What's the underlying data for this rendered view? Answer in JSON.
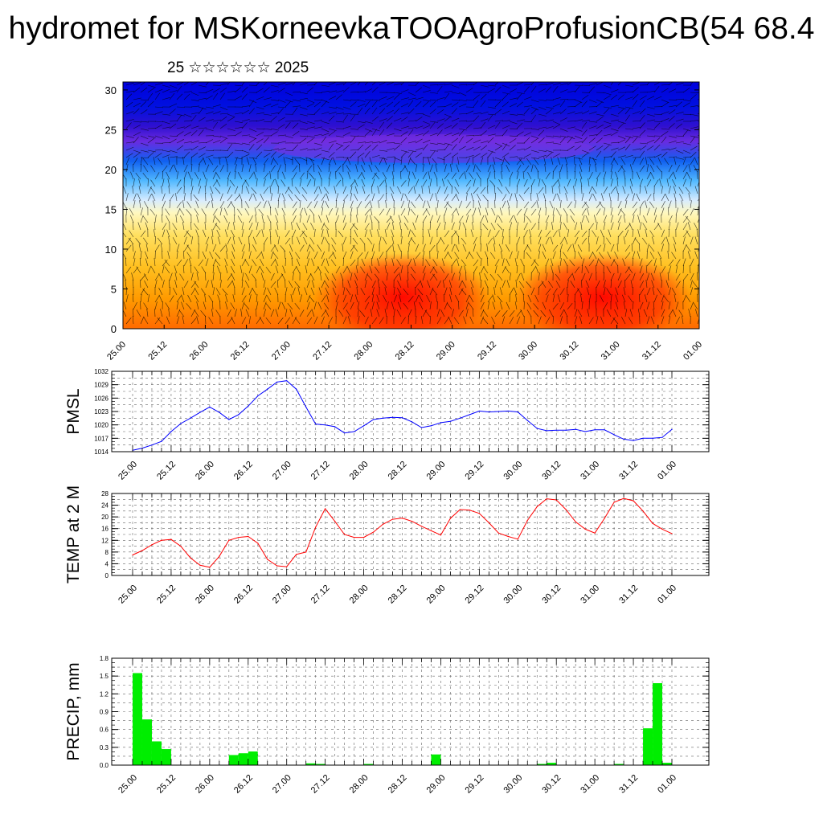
{
  "header": {
    "title": "hydromet for MSKorneevkaTOOAgroProfusionCB(54 68.4",
    "subtitle": "25 ☆☆☆☆☆☆ 2025"
  },
  "chart_data": [
    {
      "type": "heatmap",
      "title": "",
      "xlabel": "",
      "ylabel": "",
      "x_tick_labels": [
        "25.00",
        "25.12",
        "26.00",
        "26.12",
        "27.00",
        "27.12",
        "28.00",
        "28.12",
        "29.00",
        "29.12",
        "30.00",
        "30.12",
        "31.00",
        "31.12",
        "01.00"
      ],
      "y_ticks": [
        0,
        5,
        10,
        15,
        20,
        25,
        30
      ],
      "ylim": [
        0,
        31
      ],
      "overlay": "wind barbs",
      "colors": {
        "low": "#ff0000",
        "mid_low": "#ffa500",
        "mid": "#fff8b0",
        "mid_high": "#40b0ff",
        "high_purple": "#8a2be2",
        "top": "#0000dd"
      }
    },
    {
      "type": "line",
      "ylabel": "PMSL",
      "ylim": [
        1014,
        1032
      ],
      "y_ticks": [
        1014,
        1017,
        1020,
        1023,
        1026,
        1029,
        1032
      ],
      "x_tick_labels": [
        "25.00",
        "25.12",
        "26.00",
        "26.12",
        "27.00",
        "27.12",
        "28.00",
        "28.12",
        "29.00",
        "29.12",
        "30.00",
        "30.12",
        "31.00",
        "31.12",
        "01.00"
      ],
      "x_hours": [
        0,
        3,
        6,
        9,
        12,
        15,
        18,
        21,
        24,
        27,
        30,
        33,
        36,
        39,
        42,
        45,
        48,
        51,
        54,
        57,
        60,
        63,
        66,
        69,
        72,
        75,
        78,
        81,
        84,
        87,
        90,
        93,
        96,
        99,
        102,
        105,
        108,
        111,
        114,
        117,
        120,
        123,
        126,
        129,
        132,
        135,
        138,
        141,
        144,
        147,
        150,
        153,
        156,
        159,
        162,
        165,
        168
      ],
      "values": [
        1014.3,
        1014.8,
        1015.5,
        1016.3,
        1018.5,
        1020.3,
        1021.5,
        1022.8,
        1024.0,
        1022.8,
        1021.2,
        1022.3,
        1024.2,
        1026.5,
        1028.0,
        1029.6,
        1029.9,
        1028.0,
        1024.0,
        1020.2,
        1020.0,
        1019.6,
        1018.2,
        1018.5,
        1019.8,
        1021.2,
        1021.5,
        1021.7,
        1021.6,
        1020.7,
        1019.4,
        1019.8,
        1020.5,
        1020.8,
        1021.5,
        1022.3,
        1023.1,
        1022.9,
        1023.0,
        1023.1,
        1022.9,
        1021.0,
        1019.2,
        1018.7,
        1018.8,
        1018.8,
        1019.0,
        1018.5,
        1018.9,
        1018.9,
        1017.8,
        1016.8,
        1016.5,
        1017.0,
        1017.0,
        1017.2,
        1019.0
      ],
      "color": "#0000ff",
      "grid": true
    },
    {
      "type": "line",
      "ylabel": "TEMP at 2 M",
      "ylim": [
        0,
        28
      ],
      "y_ticks": [
        0,
        4,
        8,
        12,
        16,
        20,
        24,
        28
      ],
      "x_tick_labels": [
        "25.00",
        "25.12",
        "26.00",
        "26.12",
        "27.00",
        "27.12",
        "28.00",
        "28.12",
        "29.00",
        "29.12",
        "30.00",
        "30.12",
        "31.00",
        "31.12",
        "01.00"
      ],
      "x_hours": [
        0,
        3,
        6,
        9,
        12,
        15,
        18,
        21,
        24,
        27,
        30,
        33,
        36,
        39,
        42,
        45,
        48,
        51,
        54,
        57,
        60,
        63,
        66,
        69,
        72,
        75,
        78,
        81,
        84,
        87,
        90,
        93,
        96,
        99,
        102,
        105,
        108,
        111,
        114,
        117,
        120,
        123,
        126,
        129,
        132,
        135,
        138,
        141,
        144,
        147,
        150,
        153,
        156,
        159,
        162,
        165,
        168
      ],
      "values": [
        7.0,
        8.5,
        10.5,
        12.0,
        12.3,
        10.0,
        6.0,
        3.5,
        2.8,
        6.5,
        12.0,
        13.0,
        13.3,
        11.0,
        5.5,
        3.3,
        3.0,
        7.2,
        8.0,
        16.5,
        22.8,
        18.5,
        14.0,
        13.0,
        13.0,
        14.8,
        17.5,
        19.2,
        19.6,
        18.5,
        16.8,
        15.3,
        13.8,
        19.5,
        22.5,
        22.3,
        21.2,
        18.0,
        14.5,
        13.3,
        12.4,
        18.8,
        23.5,
        26.2,
        25.8,
        22.5,
        18.3,
        15.8,
        14.5,
        19.5,
        25.0,
        26.3,
        25.5,
        22.0,
        17.8,
        15.8,
        14.3
      ],
      "color": "#ff0000",
      "grid": true
    },
    {
      "type": "bar",
      "ylabel": "PRECIP, mm",
      "ylim": [
        0,
        1.8
      ],
      "y_ticks": [
        "0.0",
        "0.3",
        "0.6",
        "0.9",
        "1.2",
        "1.5",
        "1.8"
      ],
      "x_tick_labels": [
        "25.00",
        "25.12",
        "26.00",
        "26.12",
        "27.00",
        "27.12",
        "28.00",
        "28.12",
        "29.00",
        "29.12",
        "30.00",
        "30.12",
        "31.00",
        "31.12",
        "01.00"
      ],
      "bar_hours": [
        0,
        3,
        6,
        9,
        30,
        33,
        36,
        54,
        57,
        72,
        93,
        126,
        129,
        150,
        159,
        162,
        165
      ],
      "values": [
        1.55,
        0.77,
        0.4,
        0.27,
        0.17,
        0.2,
        0.23,
        0.03,
        0.02,
        0.02,
        0.18,
        0.02,
        0.04,
        0.02,
        0.62,
        1.38,
        0.04
      ],
      "color": "#00ee00",
      "grid": true
    }
  ]
}
